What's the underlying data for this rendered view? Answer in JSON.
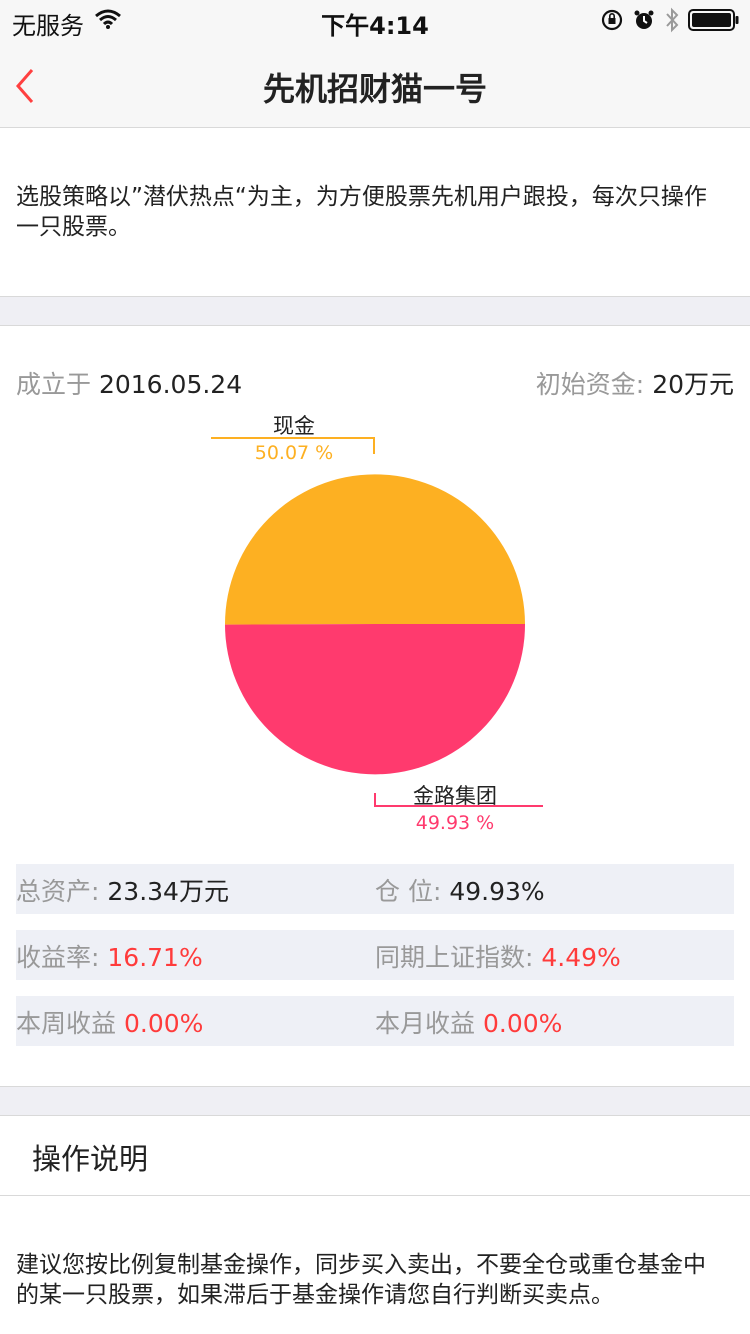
{
  "status_bar": {
    "carrier": "无服务",
    "time": "下午4:14",
    "icons": [
      "wifi-icon",
      "orientation-lock-icon",
      "alarm-icon",
      "bluetooth-icon",
      "battery-icon"
    ]
  },
  "nav": {
    "title": "先机招财猫一号",
    "back_icon": "chevron-left-icon",
    "accent_color": "#ff4040"
  },
  "intro": {
    "text": "选股策略以”潜伏热点“为主，为方便股票先机用户跟投，每次只操作一只股票。"
  },
  "info": {
    "founded_label": "成立于",
    "founded_value": "2016.05.24",
    "capital_label": "初始资金:",
    "capital_value": "20万元"
  },
  "chart_data": {
    "type": "pie",
    "slices": [
      {
        "name": "现金",
        "value": 50.07,
        "label": "50.07 %",
        "color": "#fdb022"
      },
      {
        "name": "金路集团",
        "value": 49.93,
        "label": "49.93 %",
        "color": "#ff3a6e"
      }
    ]
  },
  "stats": {
    "total_assets_label": "总资产:",
    "total_assets_value": "23.34万元",
    "position_label": "仓 位:",
    "position_value": "49.93%",
    "return_label": "收益率:",
    "return_value": "16.71%",
    "index_label": "同期上证指数:",
    "index_value": "4.49%",
    "week_label": "本周收益",
    "week_value": "0.00%",
    "month_label": "本月收益",
    "month_value": "0.00%"
  },
  "instructions": {
    "title": "操作说明",
    "text": "建议您按比例复制基金操作，同步买入卖出，不要全仓或重仓基金中的某一只股票，如果滞后于基金操作请您自行判断买卖点。"
  }
}
